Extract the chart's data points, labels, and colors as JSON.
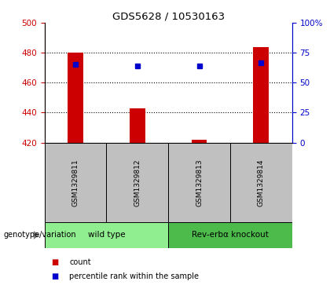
{
  "title": "GDS5628 / 10530163",
  "samples": [
    "GSM1329811",
    "GSM1329812",
    "GSM1329813",
    "GSM1329814"
  ],
  "groups": [
    {
      "label": "wild type",
      "color": "#90EE90",
      "start": 0,
      "end": 2
    },
    {
      "label": "Rev-erbα knockout",
      "color": "#4CBB4C",
      "start": 2,
      "end": 4
    }
  ],
  "bar_bottom": 420,
  "bar_tops": [
    480,
    443,
    422,
    484
  ],
  "percentile_values": [
    472,
    471,
    471,
    473
  ],
  "ylim_left": [
    420,
    500
  ],
  "ylim_right": [
    0,
    100
  ],
  "yticks_left": [
    420,
    440,
    460,
    480,
    500
  ],
  "yticks_right": [
    0,
    25,
    50,
    75,
    100
  ],
  "bar_color": "#CC0000",
  "dot_color": "#0000CC",
  "left_axis_color": "#CC0000",
  "right_axis_color": "#0000CC",
  "legend_items": [
    {
      "color": "#CC0000",
      "label": "count"
    },
    {
      "color": "#0000CC",
      "label": "percentile rank within the sample"
    }
  ],
  "group_label_text": "genotype/variation",
  "group_box_color": "#C0C0C0",
  "grid_yticks": [
    440,
    460,
    480
  ]
}
